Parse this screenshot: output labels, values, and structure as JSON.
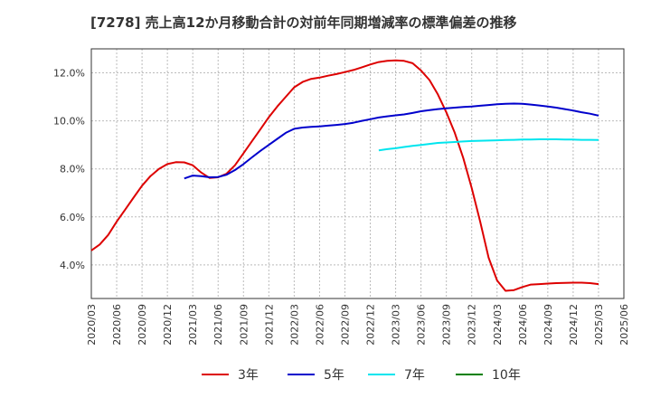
{
  "chart_data": {
    "type": "line",
    "title": "[7278]  売上高12か月移動合計の対前年同期増減率の標準偏差の推移",
    "xlabel": "",
    "ylabel": "",
    "y_unit": "%",
    "ylim": [
      2.6,
      13.0
    ],
    "y_ticks": [
      4.0,
      6.0,
      8.0,
      10.0,
      12.0
    ],
    "y_tick_labels": [
      "4.0%",
      "6.0%",
      "8.0%",
      "10.0%",
      "12.0%"
    ],
    "x_ticks": [
      "2020/03",
      "2020/06",
      "2020/09",
      "2020/12",
      "2021/03",
      "2021/06",
      "2021/09",
      "2021/12",
      "2022/03",
      "2022/06",
      "2022/09",
      "2022/12",
      "2023/03",
      "2023/06",
      "2023/09",
      "2023/12",
      "2024/03",
      "2024/06",
      "2024/09",
      "2024/12",
      "2025/03",
      "2025/06"
    ],
    "grid": true,
    "legend_position": "bottom",
    "series": [
      {
        "name": "3年",
        "color": "#dd0000",
        "x": [
          "2020/03",
          "2020/04",
          "2020/05",
          "2020/06",
          "2020/07",
          "2020/08",
          "2020/09",
          "2020/10",
          "2020/11",
          "2020/12",
          "2021/01",
          "2021/02",
          "2021/03",
          "2021/04",
          "2021/05",
          "2021/06",
          "2021/07",
          "2021/08",
          "2021/09",
          "2021/10",
          "2021/11",
          "2021/12",
          "2022/01",
          "2022/02",
          "2022/03",
          "2022/04",
          "2022/05",
          "2022/06",
          "2022/07",
          "2022/08",
          "2022/09",
          "2022/10",
          "2022/11",
          "2022/12",
          "2023/01",
          "2023/02",
          "2023/03",
          "2023/04",
          "2023/05",
          "2023/06",
          "2023/07",
          "2023/08",
          "2023/09",
          "2023/10",
          "2023/11",
          "2023/12",
          "2024/01",
          "2024/02",
          "2024/03",
          "2024/04",
          "2024/05",
          "2024/06",
          "2024/07",
          "2024/08",
          "2024/09",
          "2024/10",
          "2024/11",
          "2024/12",
          "2025/01",
          "2025/02",
          "2025/03"
        ],
        "values": [
          4.6,
          4.85,
          5.25,
          5.8,
          6.3,
          6.8,
          7.3,
          7.7,
          8.0,
          8.2,
          8.28,
          8.27,
          8.15,
          7.85,
          7.62,
          7.65,
          7.8,
          8.15,
          8.65,
          9.15,
          9.65,
          10.15,
          10.6,
          11.0,
          11.4,
          11.62,
          11.75,
          11.8,
          11.88,
          11.95,
          12.03,
          12.12,
          12.23,
          12.35,
          12.45,
          12.5,
          12.52,
          12.5,
          12.4,
          12.1,
          11.7,
          11.1,
          10.35,
          9.5,
          8.45,
          7.2,
          5.8,
          4.3,
          3.35,
          2.92,
          2.95,
          3.08,
          3.18,
          3.2,
          3.22,
          3.24,
          3.25,
          3.26,
          3.26,
          3.24,
          3.2
        ]
      },
      {
        "name": "5年",
        "color": "#0000cc",
        "x": [
          "2021/02",
          "2021/03",
          "2021/04",
          "2021/05",
          "2021/06",
          "2021/07",
          "2021/08",
          "2021/09",
          "2021/10",
          "2021/11",
          "2021/12",
          "2022/01",
          "2022/02",
          "2022/03",
          "2022/04",
          "2022/05",
          "2022/06",
          "2022/07",
          "2022/08",
          "2022/09",
          "2022/10",
          "2022/11",
          "2022/12",
          "2023/01",
          "2023/02",
          "2023/03",
          "2023/04",
          "2023/05",
          "2023/06",
          "2023/07",
          "2023/08",
          "2023/09",
          "2023/10",
          "2023/11",
          "2023/12",
          "2024/01",
          "2024/02",
          "2024/03",
          "2024/04",
          "2024/05",
          "2024/06",
          "2024/07",
          "2024/08",
          "2024/09",
          "2024/10",
          "2024/11",
          "2024/12",
          "2025/01",
          "2025/02",
          "2025/03"
        ],
        "values": [
          7.6,
          7.72,
          7.7,
          7.65,
          7.66,
          7.76,
          7.95,
          8.2,
          8.48,
          8.75,
          9.0,
          9.25,
          9.5,
          9.67,
          9.72,
          9.75,
          9.77,
          9.8,
          9.83,
          9.87,
          9.92,
          10.0,
          10.07,
          10.14,
          10.19,
          10.23,
          10.27,
          10.33,
          10.4,
          10.45,
          10.49,
          10.52,
          10.55,
          10.58,
          10.6,
          10.63,
          10.66,
          10.69,
          10.71,
          10.72,
          10.71,
          10.68,
          10.64,
          10.6,
          10.55,
          10.49,
          10.43,
          10.36,
          10.3,
          10.22
        ]
      },
      {
        "name": "7年",
        "color": "#00e5ee",
        "x": [
          "2023/01",
          "2023/02",
          "2023/03",
          "2023/04",
          "2023/05",
          "2023/06",
          "2023/07",
          "2023/08",
          "2023/09",
          "2023/10",
          "2023/11",
          "2023/12",
          "2024/01",
          "2024/02",
          "2024/03",
          "2024/04",
          "2024/05",
          "2024/06",
          "2024/07",
          "2024/08",
          "2024/09",
          "2024/10",
          "2024/11",
          "2024/12",
          "2025/01",
          "2025/02",
          "2025/03"
        ],
        "values": [
          8.77,
          8.82,
          8.86,
          8.91,
          8.96,
          9.0,
          9.04,
          9.08,
          9.1,
          9.12,
          9.14,
          9.16,
          9.17,
          9.18,
          9.19,
          9.2,
          9.21,
          9.22,
          9.22,
          9.23,
          9.23,
          9.23,
          9.22,
          9.22,
          9.21,
          9.21,
          9.2
        ]
      },
      {
        "name": "10年",
        "color": "#008000",
        "x": [],
        "values": []
      }
    ]
  }
}
